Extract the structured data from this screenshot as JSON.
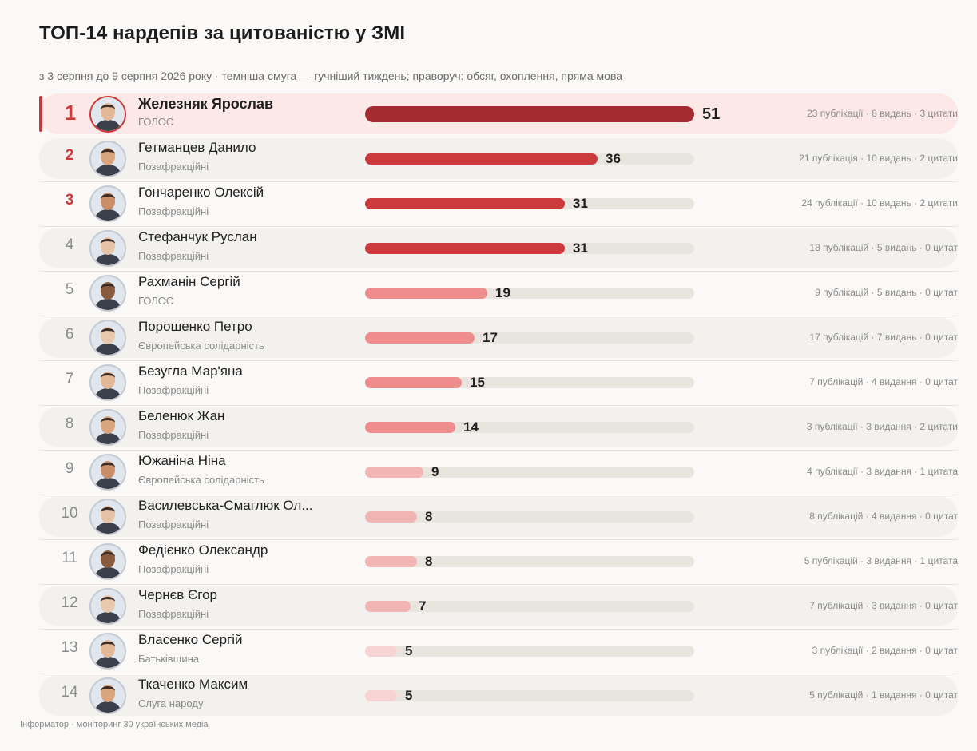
{
  "title": "ТОП-14 нардепів за цитованістю у ЗМІ",
  "subtitle": "з 3 серпня до 9 серпня 2026 року · темніша смуга — гучніший тиждень; праворуч: обсяг, охоплення, пряма мова",
  "footer": "Інформатор · моніторинг 30 українських медіа",
  "colors": {
    "level_1": "#a42b2f",
    "level_2": "#cc3a3d",
    "level_3": "#ef8c8c",
    "level_4": "#f3b4b4",
    "level_5": "#f8d3d3",
    "highlight_row": "#fde8e8",
    "track": "#e8e5df",
    "rank_accent": "#d0393c"
  },
  "chart_data": {
    "type": "bar",
    "orientation": "horizontal",
    "xlim": [
      0,
      51
    ],
    "rows": [
      {
        "rank": "1",
        "name": "Железняк Ярослав",
        "party": "ГОЛОС",
        "value": 51,
        "stats": "23 публікації · 8 видань · 3 цитати",
        "level": "level_1",
        "avatar": "avatar-icon"
      },
      {
        "rank": "2",
        "name": "Гетманцев Данило",
        "party": "Позафракційні",
        "value": 36,
        "stats": "21 публікація · 10 видань · 2 цитати",
        "level": "level_2",
        "avatar": "avatar-icon"
      },
      {
        "rank": "3",
        "name": "Гончаренко Олексій",
        "party": "Позафракційні",
        "value": 31,
        "stats": "24 публікації · 10 видань · 2 цитати",
        "level": "level_2",
        "avatar": "avatar-icon"
      },
      {
        "rank": "4",
        "name": "Стефанчук Руслан",
        "party": "Позафракційні",
        "value": 31,
        "stats": "18 публікацій · 5 видань · 0 цитат",
        "level": "level_2",
        "avatar": "avatar-icon"
      },
      {
        "rank": "5",
        "name": "Рахманін Сергій",
        "party": "ГОЛОС",
        "value": 19,
        "stats": "9 публікацій · 5 видань · 0 цитат",
        "level": "level_3",
        "avatar": "avatar-icon"
      },
      {
        "rank": "6",
        "name": "Порошенко Петро",
        "party": "Європейська солідарність",
        "value": 17,
        "stats": "17 публікацій · 7 видань · 0 цитат",
        "level": "level_3",
        "avatar": "avatar-icon"
      },
      {
        "rank": "7",
        "name": "Безугла Мар'яна",
        "party": "Позафракційні",
        "value": 15,
        "stats": "7 публікацій · 4 видання · 0 цитат",
        "level": "level_3",
        "avatar": "avatar-icon"
      },
      {
        "rank": "8",
        "name": "Беленюк Жан",
        "party": "Позафракційні",
        "value": 14,
        "stats": "3 публікації · 3 видання · 2 цитати",
        "level": "level_3",
        "avatar": "avatar-icon"
      },
      {
        "rank": "9",
        "name": "Южаніна Ніна",
        "party": "Європейська солідарність",
        "value": 9,
        "stats": "4 публікації · 3 видання · 1 цитата",
        "level": "level_4",
        "avatar": "avatar-icon"
      },
      {
        "rank": "10",
        "name": "Василевська-Смаглюк Ол...",
        "party": "Позафракційні",
        "value": 8,
        "stats": "8 публікацій · 4 видання · 0 цитат",
        "level": "level_4",
        "avatar": "avatar-icon"
      },
      {
        "rank": "11",
        "name": "Федієнко Олександр",
        "party": "Позафракційні",
        "value": 8,
        "stats": "5 публікацій · 3 видання · 1 цитата",
        "level": "level_4",
        "avatar": "avatar-icon"
      },
      {
        "rank": "12",
        "name": "Чернєв Єгор",
        "party": "Позафракційні",
        "value": 7,
        "stats": "7 публікацій · 3 видання · 0 цитат",
        "level": "level_4",
        "avatar": "avatar-icon"
      },
      {
        "rank": "13",
        "name": "Власенко Сергій",
        "party": "Батьківщина",
        "value": 5,
        "stats": "3 публікації · 2 видання · 0 цитат",
        "level": "level_5",
        "avatar": "avatar-icon"
      },
      {
        "rank": "14",
        "name": "Ткаченко Максим",
        "party": "Слуга народу",
        "value": 5,
        "stats": "5 публікацій · 1 видання · 0 цитат",
        "level": "level_5",
        "avatar": "avatar-icon"
      }
    ]
  }
}
